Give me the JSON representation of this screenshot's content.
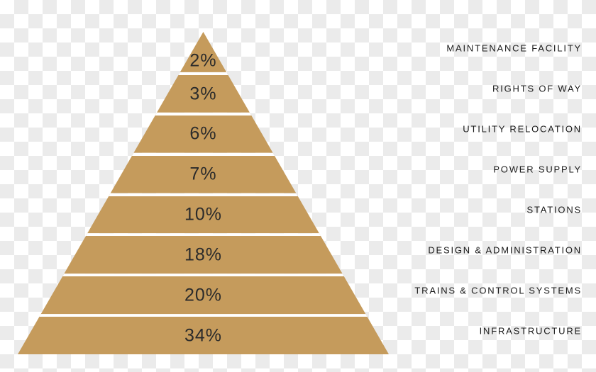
{
  "chart_data": {
    "type": "pyramid",
    "title": "",
    "orientation": "smallest value at apex, largest at base",
    "labels_position": "right, right-aligned, uppercase",
    "value_labels_position": "inside segments, centered",
    "layers": [
      {
        "label": "MAINTENANCE FACILITY",
        "value": 2,
        "value_label": "2%"
      },
      {
        "label": "RIGHTS OF WAY",
        "value": 3,
        "value_label": "3%"
      },
      {
        "label": "UTILITY RELOCATION",
        "value": 6,
        "value_label": "6%"
      },
      {
        "label": "POWER SUPPLY",
        "value": 7,
        "value_label": "7%"
      },
      {
        "label": "STATIONS",
        "value": 10,
        "value_label": "10%"
      },
      {
        "label": "DESIGN & ADMINISTRATION",
        "value": 18,
        "value_label": "18%"
      },
      {
        "label": "TRAINS & CONTROL SYSTEMS",
        "value": 20,
        "value_label": "20%"
      },
      {
        "label": "INFRASTRUCTURE",
        "value": 34,
        "value_label": "34%"
      }
    ],
    "colors": {
      "segment_fill": "#c59b5c",
      "separator": "#ffffff",
      "value_text": "#2b2b2b",
      "label_text": "#1a1a1a",
      "background_checker_light": "#ffffff",
      "background_checker_dark": "#ebebeb"
    }
  }
}
